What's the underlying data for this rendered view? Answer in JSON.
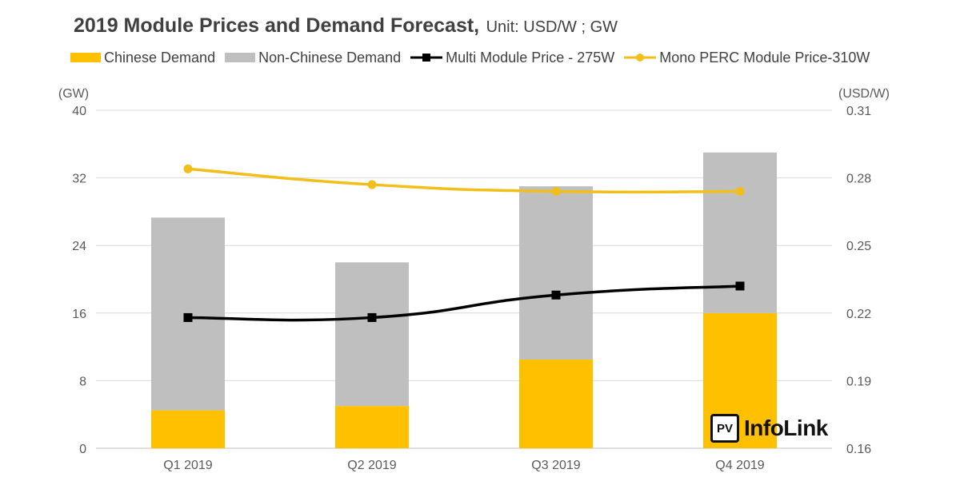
{
  "header": {
    "title": "2019 Module Prices and Demand Forecast,",
    "unit": "Unit: USD/W ; GW"
  },
  "logo": {
    "mark": "PV",
    "text": "InfoLink"
  },
  "colors": {
    "chinese": "#FFC000",
    "non_chinese": "#BFBFBF",
    "multi": "#000000",
    "mono": "#F2BE1A",
    "grid": "#D9D9D9"
  },
  "chart_data": {
    "type": "bar",
    "stacked": true,
    "categories": [
      "Q1 2019",
      "Q2 2019",
      "Q3 2019",
      "Q4 2019"
    ],
    "left_axis": {
      "label": "(GW)",
      "ylim": [
        0,
        40
      ],
      "ticks": [
        "0",
        "8",
        "16",
        "24",
        "32",
        "40"
      ]
    },
    "right_axis": {
      "label": "(USD/W)",
      "ylim": [
        0.16,
        0.31
      ],
      "ticks": [
        "0.16",
        "0.19",
        "0.22",
        "0.25",
        "0.28",
        "0.31"
      ]
    },
    "series": [
      {
        "name": "Chinese Demand",
        "type": "bar",
        "axis": "left",
        "values": [
          4.5,
          5.0,
          10.5,
          16.0
        ]
      },
      {
        "name": "Non-Chinese Demand",
        "type": "bar",
        "axis": "left",
        "values": [
          22.8,
          17.0,
          20.5,
          19.0
        ]
      },
      {
        "name": "Multi Module Price - 275W",
        "type": "line",
        "marker": "square",
        "axis": "right",
        "values": [
          0.218,
          0.218,
          0.228,
          0.232
        ]
      },
      {
        "name": "Mono PERC Module Price-310W",
        "type": "line",
        "marker": "circle",
        "axis": "right",
        "values": [
          0.284,
          0.277,
          0.274,
          0.274
        ]
      }
    ],
    "grid": true,
    "legend_position": "top"
  }
}
